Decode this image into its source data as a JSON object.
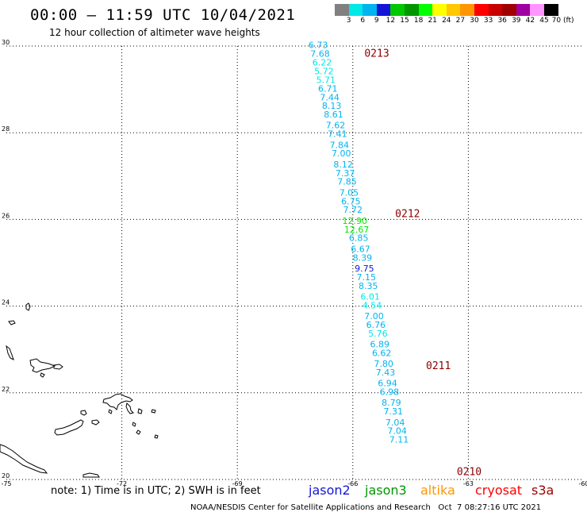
{
  "header": {
    "title": "00:00 – 11:59 UTC 10/04/2021",
    "subtitle": "12 hour collection of altimeter wave heights"
  },
  "color_scale": {
    "labels": [
      "3",
      "6",
      "9",
      "12",
      "15",
      "18",
      "21",
      "24",
      "27",
      "30",
      "33",
      "36",
      "39",
      "42",
      "45",
      "70 (ft)"
    ],
    "colors": [
      "#808080",
      "#00e8e8",
      "#00b4f0",
      "#1414d8",
      "#00c800",
      "#009600",
      "#00ff00",
      "#ffff00",
      "#ffc800",
      "#ff9600",
      "#ff0000",
      "#c80000",
      "#a00000",
      "#a000a0",
      "#ff96ff",
      "#000000"
    ]
  },
  "axes": {
    "x_ticks": [
      "-75",
      "-72",
      "-69",
      "-66",
      "-63",
      "-60"
    ],
    "y_ticks": [
      "30",
      "28",
      "26",
      "24",
      "22",
      "20"
    ],
    "lon_range": [
      -75,
      -60
    ],
    "lat_range": [
      20,
      30
    ]
  },
  "chart_data": {
    "type": "map",
    "track_points": [
      {
        "lon": -66.9,
        "lat": 29.95,
        "swh": "6.73",
        "color": "#00b4f0"
      },
      {
        "lon": -66.85,
        "lat": 29.75,
        "swh": "7.68",
        "color": "#00b4f0"
      },
      {
        "lon": -66.8,
        "lat": 29.55,
        "swh": "6.22",
        "color": "#00e8e8"
      },
      {
        "lon": -66.75,
        "lat": 29.35,
        "swh": "5.72",
        "color": "#00e8e8"
      },
      {
        "lon": -66.7,
        "lat": 29.15,
        "swh": "5.71",
        "color": "#00e8e8"
      },
      {
        "lon": -66.65,
        "lat": 28.95,
        "swh": "6.71",
        "color": "#00b4f0"
      },
      {
        "lon": -66.6,
        "lat": 28.75,
        "swh": "7.44",
        "color": "#00b4f0"
      },
      {
        "lon": -66.55,
        "lat": 28.55,
        "swh": "8.13",
        "color": "#00b4f0"
      },
      {
        "lon": -66.5,
        "lat": 28.35,
        "swh": "8.61",
        "color": "#00b4f0"
      },
      {
        "lon": -66.45,
        "lat": 28.1,
        "swh": "7.62",
        "color": "#00b4f0"
      },
      {
        "lon": -66.4,
        "lat": 27.9,
        "swh": "7.41",
        "color": "#00b4f0"
      },
      {
        "lon": -66.35,
        "lat": 27.65,
        "swh": "7.84",
        "color": "#00b4f0"
      },
      {
        "lon": -66.3,
        "lat": 27.45,
        "swh": "7.00",
        "color": "#00b4f0"
      },
      {
        "lon": -66.25,
        "lat": 27.2,
        "swh": "8.12",
        "color": "#00b4f0"
      },
      {
        "lon": -66.2,
        "lat": 27.0,
        "swh": "7.37",
        "color": "#00b4f0"
      },
      {
        "lon": -66.15,
        "lat": 26.8,
        "swh": "7.85",
        "color": "#00b4f0"
      },
      {
        "lon": -66.1,
        "lat": 26.55,
        "swh": "7.05",
        "color": "#00b4f0"
      },
      {
        "lon": -66.05,
        "lat": 26.35,
        "swh": "6.75",
        "color": "#00b4f0"
      },
      {
        "lon": -66.0,
        "lat": 26.15,
        "swh": "7.72",
        "color": "#00b4f0"
      },
      {
        "lon": -65.95,
        "lat": 25.9,
        "swh": "12.90",
        "color": "#00e800"
      },
      {
        "lon": -65.9,
        "lat": 25.7,
        "swh": "12.67",
        "color": "#00e800"
      },
      {
        "lon": -65.85,
        "lat": 25.5,
        "swh": "6.85",
        "color": "#00b4f0"
      },
      {
        "lon": -65.8,
        "lat": 25.25,
        "swh": "6.67",
        "color": "#00b4f0"
      },
      {
        "lon": -65.75,
        "lat": 25.05,
        "swh": "8.39",
        "color": "#00b4f0"
      },
      {
        "lon": -65.7,
        "lat": 24.8,
        "swh": "9.75",
        "color": "#1414d8"
      },
      {
        "lon": -65.65,
        "lat": 24.6,
        "swh": "7.15",
        "color": "#00b4f0"
      },
      {
        "lon": -65.6,
        "lat": 24.4,
        "swh": "8.35",
        "color": "#00b4f0"
      },
      {
        "lon": -65.55,
        "lat": 24.15,
        "swh": "6.01",
        "color": "#00e8e8"
      },
      {
        "lon": -65.5,
        "lat": 23.95,
        "swh": "4.54",
        "color": "#00e8e8"
      },
      {
        "lon": -65.45,
        "lat": 23.7,
        "swh": "7.00",
        "color": "#00b4f0"
      },
      {
        "lon": -65.4,
        "lat": 23.5,
        "swh": "6.76",
        "color": "#00b4f0"
      },
      {
        "lon": -65.35,
        "lat": 23.3,
        "swh": "5.76",
        "color": "#00e8e8"
      },
      {
        "lon": -65.3,
        "lat": 23.05,
        "swh": "6.89",
        "color": "#00b4f0"
      },
      {
        "lon": -65.25,
        "lat": 22.85,
        "swh": "6.62",
        "color": "#00b4f0"
      },
      {
        "lon": -65.2,
        "lat": 22.6,
        "swh": "7.80",
        "color": "#00b4f0"
      },
      {
        "lon": -65.15,
        "lat": 22.4,
        "swh": "7.43",
        "color": "#00b4f0"
      },
      {
        "lon": -65.1,
        "lat": 22.15,
        "swh": "6.94",
        "color": "#00b4f0"
      },
      {
        "lon": -65.05,
        "lat": 21.95,
        "swh": "6.98",
        "color": "#00b4f0"
      },
      {
        "lon": -65.0,
        "lat": 21.7,
        "swh": "8.79",
        "color": "#00b4f0"
      },
      {
        "lon": -64.95,
        "lat": 21.5,
        "swh": "7.31",
        "color": "#00b4f0"
      },
      {
        "lon": -64.9,
        "lat": 21.25,
        "swh": "7.04",
        "color": "#00b4f0"
      },
      {
        "lon": -64.85,
        "lat": 21.05,
        "swh": "7.04",
        "color": "#00b4f0"
      },
      {
        "lon": -64.8,
        "lat": 20.85,
        "swh": "7.11",
        "color": "#00b4f0"
      }
    ],
    "time_labels": [
      {
        "lon": -65.7,
        "lat": 29.75,
        "text": "0213"
      },
      {
        "lon": -64.9,
        "lat": 26.05,
        "text": "0212"
      },
      {
        "lon": -64.1,
        "lat": 22.55,
        "text": "0211"
      },
      {
        "lon": -63.3,
        "lat": 20.1,
        "text": "0210"
      }
    ],
    "time_label_color": "#8b0000",
    "grid": true
  },
  "footer": {
    "note": "note: 1) Time is in UTC; 2) SWH is in feet",
    "satellites": [
      {
        "name": "jason2",
        "color": "#1414d8"
      },
      {
        "name": "jason3",
        "color": "#009600"
      },
      {
        "name": "altika",
        "color": "#ff9600"
      },
      {
        "name": "cryosat",
        "color": "#ff0000"
      },
      {
        "name": "s3a",
        "color": "#a00000"
      }
    ],
    "credit": "NOAA/NESDIS Center for Satellite Applications and Research   Oct  7 08:27:16 UTC 2021"
  }
}
